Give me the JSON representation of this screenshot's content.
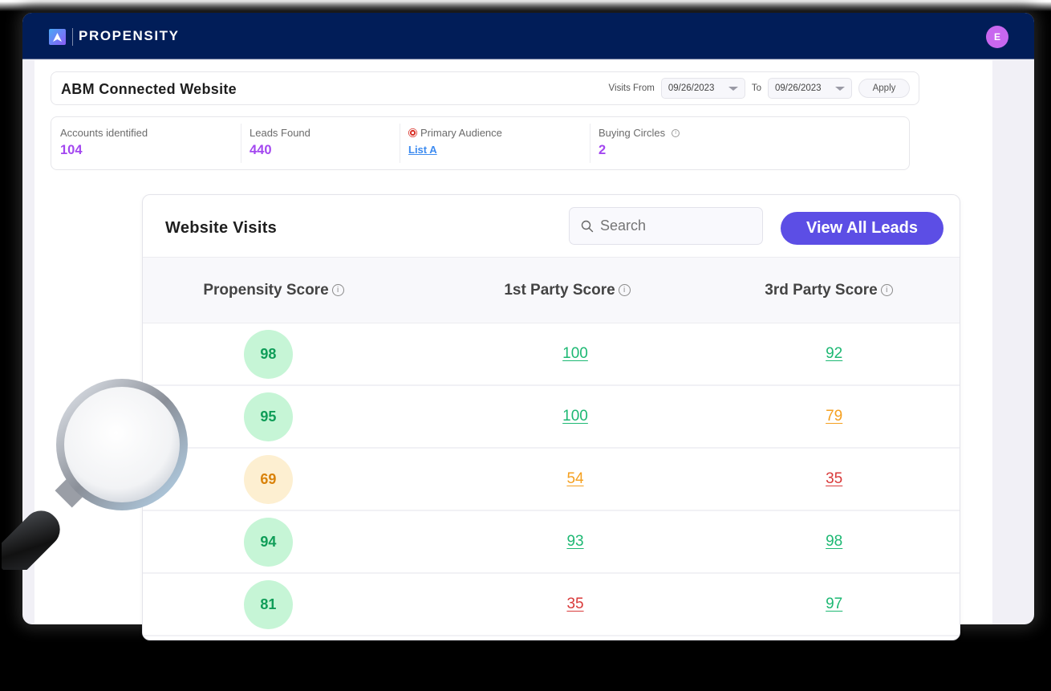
{
  "app": {
    "brand": "PROPENSITY",
    "avatar_initial": "E"
  },
  "page": {
    "title": "ABM Connected Website",
    "filters": {
      "visits_from_label": "Visits From",
      "from_date": "09/26/2023",
      "to_label": "To",
      "to_date": "09/26/2023",
      "apply_label": "Apply"
    }
  },
  "stats": [
    {
      "label": "Accounts identified",
      "value": "104"
    },
    {
      "label": "Leads Found",
      "value": "440"
    },
    {
      "label": "Primary Audience",
      "value": "List A",
      "icon": "target-icon"
    },
    {
      "label": "Buying Circles",
      "value": "2",
      "icon": "info-icon"
    }
  ],
  "website_visits": {
    "title": "Website Visits",
    "search_placeholder": "Search",
    "view_all_label": "View All Leads",
    "columns": [
      "Propensity Score",
      "1st Party Score",
      "3rd Party Score"
    ],
    "rows": [
      {
        "propensity": "98",
        "propensity_level": "high",
        "first": "100",
        "first_level": "high",
        "third": "92",
        "third_level": "high"
      },
      {
        "propensity": "95",
        "propensity_level": "high",
        "first": "100",
        "first_level": "high",
        "third": "79",
        "third_level": "medium"
      },
      {
        "propensity": "69",
        "propensity_level": "medium",
        "first": "54",
        "first_level": "medium",
        "third": "35",
        "third_level": "low"
      },
      {
        "propensity": "94",
        "propensity_level": "high",
        "first": "93",
        "first_level": "high",
        "third": "98",
        "third_level": "high"
      },
      {
        "propensity": "81",
        "propensity_level": "high",
        "first": "35",
        "first_level": "low",
        "third": "97",
        "third_level": "high"
      }
    ]
  },
  "colors": {
    "topbar": "#011d58",
    "accent_purple": "#a347f0",
    "button": "#5c4ee5",
    "link_blue": "#3d8bf0",
    "high_text": "#0f9d58",
    "high_bg": "#c6f5d6",
    "high_link": "#1db873",
    "medium_text": "#d9820a",
    "medium_bg": "#fdefd1",
    "medium_link": "#f5a020",
    "low_link": "#d93a3a"
  }
}
